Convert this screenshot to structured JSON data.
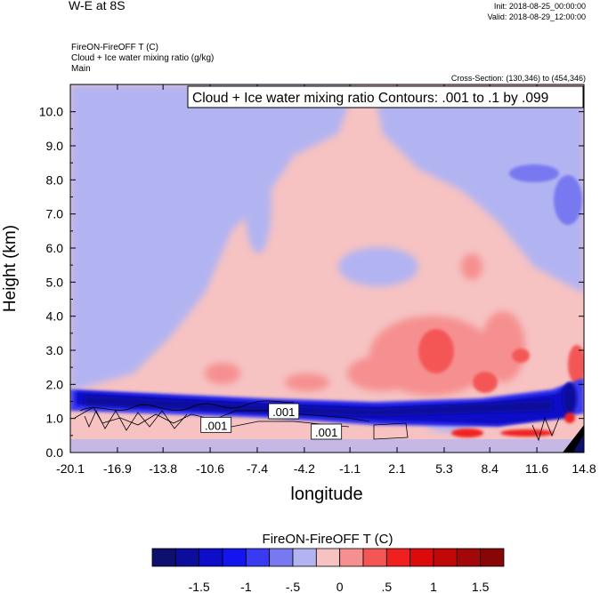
{
  "header": {
    "title": "W-E at 8S",
    "init": "Init: 2018-08-25_00:00:00",
    "valid": "Valid: 2018-08-29_12:00:00",
    "subtitle_1": "FireON-FireOFF T   (C)",
    "subtitle_2": "Cloud + Ice water mixing ratio   (g/kg)",
    "subtitle_3": "Main",
    "cross_section": "Cross-Section: (130,346) to (454,346)"
  },
  "chart_data": {
    "type": "heatmap",
    "title": "FireON-FireOFF T  (C)",
    "xlabel": "longitude",
    "ylabel": "Height (km)",
    "xlim": [
      -20.1,
      14.8
    ],
    "ylim": [
      0.0,
      10.8
    ],
    "x_ticks": [
      "-20.1",
      "-16.9",
      "-13.8",
      "-10.6",
      "-7.4",
      "-4.2",
      "-1.1",
      "2.1",
      "5.3",
      "8.4",
      "11.6",
      "14.8"
    ],
    "y_ticks": [
      "0.0",
      "1.0",
      "2.0",
      "3.0",
      "4.0",
      "5.0",
      "6.0",
      "7.0",
      "8.0",
      "9.0",
      "10.0"
    ],
    "contour_info": "Cloud + Ice water mixing ratio Contours: .001 to .1 by .099",
    "contour_labels": [
      {
        "text": ".001",
        "lon": -10.2,
        "height": 0.8
      },
      {
        "text": ".001",
        "lon": -5.6,
        "height": 1.2
      },
      {
        "text": ".001",
        "lon": -2.7,
        "height": 0.6
      }
    ],
    "colorbar": {
      "label": "FireON-FireOFF T  (C)",
      "levels": [
        -1.75,
        -1.5,
        -1.25,
        -1,
        -0.75,
        -0.5,
        -0.25,
        0,
        0.25,
        0.5,
        0.75,
        1,
        1.25,
        1.5,
        1.75
      ],
      "tick_labels": [
        "-1.5",
        "-1",
        "-.5",
        "0",
        ".5",
        "1",
        "1.5"
      ],
      "tick_values": [
        -1.5,
        -1,
        -0.5,
        0,
        0.5,
        1,
        1.5
      ],
      "colors": [
        "#0f0f6e",
        "#0d0d9c",
        "#0e0ec8",
        "#1414ef",
        "#3a3af2",
        "#7878f0",
        "#b2b4f2",
        "#f6c2c2",
        "#f69090",
        "#f45656",
        "#f02020",
        "#dc0a0a",
        "#c00808",
        "#a20808",
        "#870707"
      ]
    }
  }
}
